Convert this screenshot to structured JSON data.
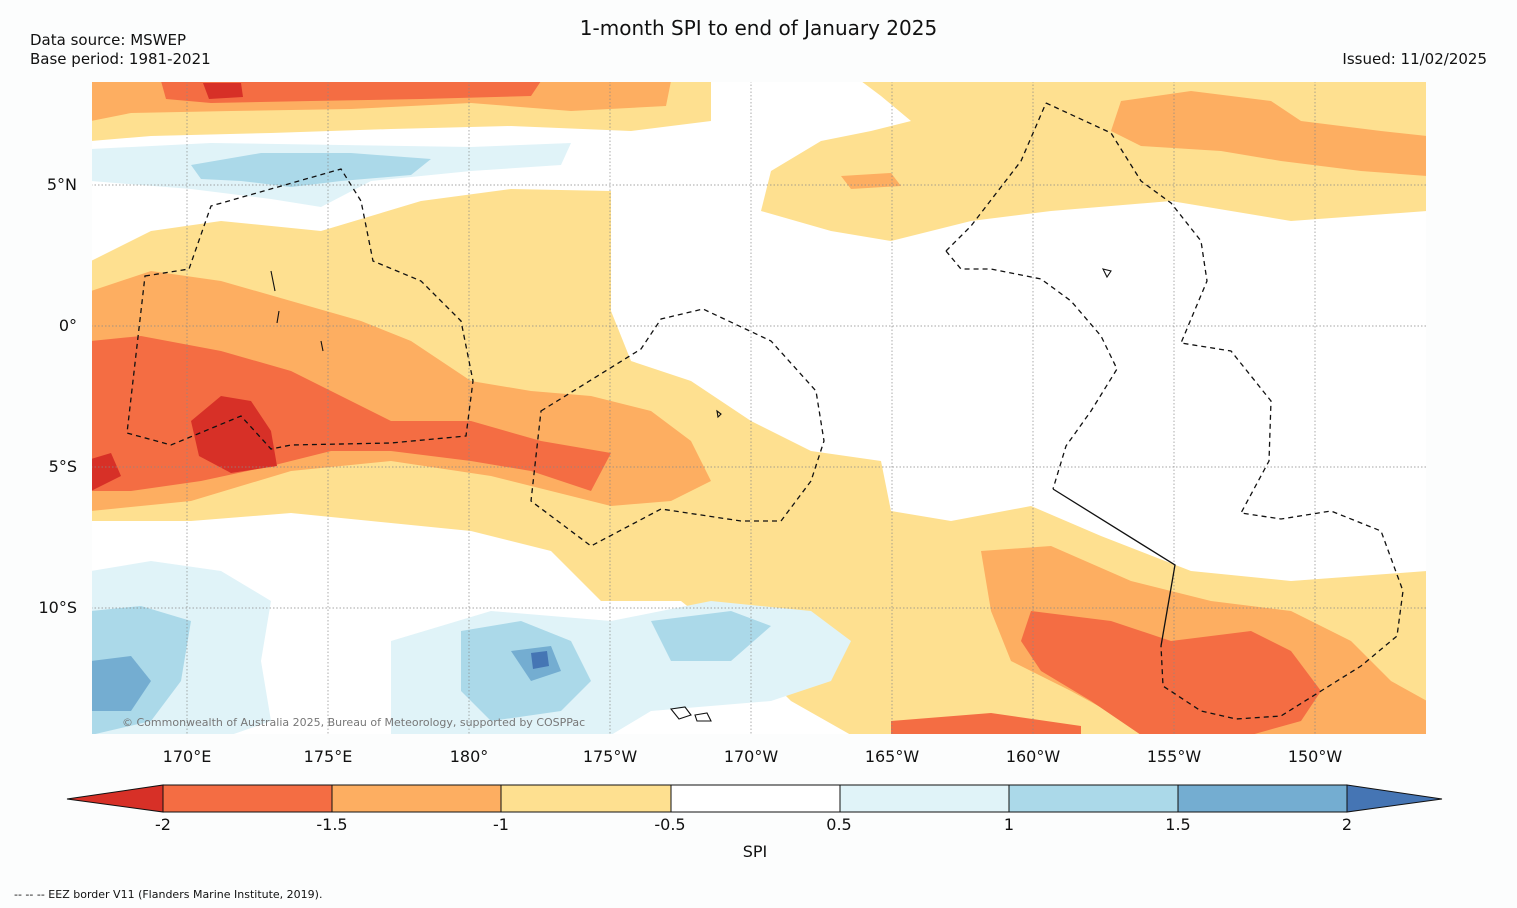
{
  "title": "1-month SPI to end of January 2025",
  "data_source": "Data source: MSWEP",
  "base_period": "Base period: 1981-2021",
  "issued": "Issued: 11/02/2025",
  "copyright": "© Commonwealth of Australia 2025, Bureau of Meteorology, supported by COSPPac",
  "eez_note": "--  --  -- EEZ border V11 (Flanders Marine Institute, 2019).",
  "map": {
    "lat_labels": [
      "5°N",
      "0°",
      "5°S",
      "10°S"
    ],
    "lon_labels": [
      "170°E",
      "175°E",
      "180°",
      "175°W",
      "170°W",
      "165°W",
      "160°W",
      "155°W",
      "150°W"
    ]
  },
  "colorbar": {
    "label": "SPI",
    "ticks": [
      "-2",
      "-1.5",
      "-1",
      "-0.5",
      "0.5",
      "1",
      "1.5",
      "2"
    ],
    "colors": {
      "below_-2": "#d73027",
      "-2_to_-1.5": "#f46d43",
      "-1.5_to_-1": "#fdae61",
      "-1_to_-0.5": "#fee090",
      "-0.5_to_0.5": "#ffffff",
      "0.5_to_1": "#e0f3f8",
      "1_to_1.5": "#abd9e9",
      "1.5_to_2": "#74add1",
      "above_2": "#4575b4"
    }
  }
}
